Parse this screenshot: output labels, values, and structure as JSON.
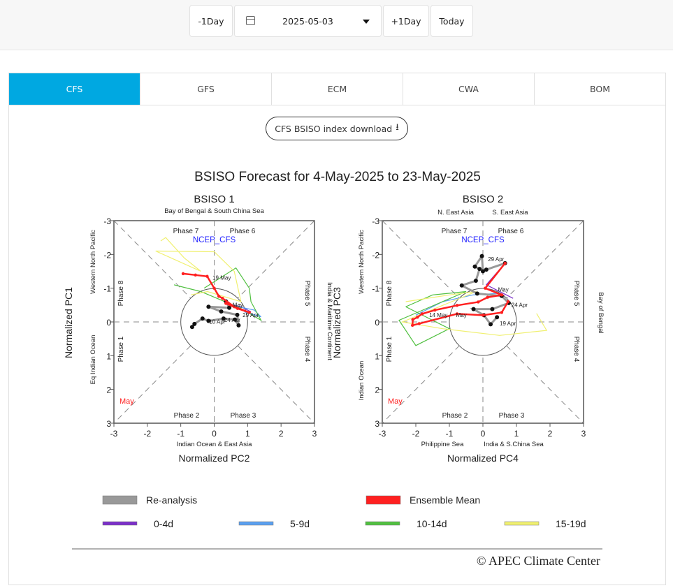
{
  "toolbar": {
    "prev_day": "-1Day",
    "date": "2025-05-03",
    "next_day": "+1Day",
    "today": "Today",
    "calendar_icon": "calendar-icon",
    "dropdown_icon": "caret-down-icon"
  },
  "tabs": [
    {
      "label": "CFS",
      "active": true
    },
    {
      "label": "GFS"
    },
    {
      "label": "ECM"
    },
    {
      "label": "CWA"
    },
    {
      "label": "BOM"
    }
  ],
  "accent_color": "#00a8e1",
  "download": {
    "label": "CFS BSISO index download",
    "icon": "download-icon"
  },
  "figure": {
    "title": "BSISO Forecast for 4-May-2025 to 23-May-2025",
    "model_label": "NCEP_CFS",
    "month_label": "May",
    "copyright": "© APEC Climate Center",
    "legend": [
      {
        "label": "Re-analysis",
        "color": "#999999"
      },
      {
        "label": "Ensemble Mean",
        "color": "#ff2020"
      },
      {
        "label": "0-4d",
        "color": "#7b2fc9"
      },
      {
        "label": "5-9d",
        "color": "#5aa0f0"
      },
      {
        "label": "10-14d",
        "color": "#50c040"
      },
      {
        "label": "15-19d",
        "color": "#f0f070"
      }
    ]
  },
  "chart_data": [
    {
      "type": "scatter",
      "title": "BSISO 1",
      "xlabel": "Normalized PC2",
      "ylabel": "Normalized PC1",
      "xlim": [
        -3,
        3
      ],
      "ylim": [
        -3,
        3
      ],
      "ticks": [
        "-3",
        "-2",
        "-1",
        "0",
        "1",
        "2",
        "3"
      ],
      "region_top": "Bay of Bengal & South China Sea",
      "region_bottom": "Indian Ocean & East Asia",
      "region_left_top": "Western North Pacific",
      "region_left_bottom": "Eq Indian Ocean",
      "region_right": "India & Maritime Continent",
      "phases": [
        "Phase 1",
        "Phase 2",
        "Phase 3",
        "Phase 4",
        "Phase 5",
        "Phase 6",
        "Phase 7",
        "Phase 8"
      ],
      "reanalysis": [
        [
          -0.66,
          0.15
        ],
        [
          -0.59,
          0.06
        ],
        [
          -0.35,
          -0.1
        ],
        [
          -0.17,
          -0.03
        ],
        [
          0.28,
          -0.1
        ],
        [
          0.62,
          -0.07
        ],
        [
          0.73,
          0.1
        ],
        [
          0.69,
          -0.21
        ],
        [
          0.21,
          -0.31
        ],
        [
          -0.17,
          -0.45
        ],
        [
          0.45,
          -0.42
        ],
        [
          0.35,
          -0.61
        ]
      ],
      "ensemble_mean": [
        [
          0.35,
          -0.55
        ],
        [
          0.7,
          -0.4
        ],
        [
          1.05,
          -0.28
        ],
        [
          0.6,
          -0.45
        ],
        [
          0.25,
          -0.7
        ],
        [
          0.14,
          -0.76
        ],
        [
          0,
          -1.0
        ],
        [
          -0.21,
          -1.35
        ],
        [
          -0.56,
          -1.39
        ],
        [
          -0.93,
          -1.43
        ]
      ],
      "members": {
        "0-4d": [
          [
            0.35,
            -0.55
          ],
          [
            0.8,
            -0.45
          ],
          [
            1.1,
            -0.3
          ]
        ],
        "5-9d": [
          [
            0.5,
            -0.5
          ],
          [
            1.2,
            -0.35
          ],
          [
            1.4,
            -0.15
          ],
          [
            0.9,
            -0.3
          ]
        ],
        "10-14d": [
          [
            -1.2,
            -1.1
          ],
          [
            -0.4,
            -0.9
          ],
          [
            0.8,
            -0.4
          ],
          [
            1.4,
            -0.05
          ],
          [
            1.1,
            -0.6
          ],
          [
            1.05,
            -1.0
          ],
          [
            0.65,
            -1.6
          ],
          [
            -0.3,
            -1.0
          ]
        ],
        "15-19d": [
          [
            -1.6,
            -2.4
          ],
          [
            -1.45,
            -2.5
          ],
          [
            -0.9,
            -1.9
          ],
          [
            -0.4,
            -1.5
          ],
          [
            -1.75,
            -2.1
          ],
          [
            0,
            -2.08
          ],
          [
            0.6,
            -1.5
          ],
          [
            0.8,
            -0.6
          ],
          [
            -0.2,
            -0.9
          ],
          [
            -0.7,
            -0.8
          ]
        ]
      },
      "point_labels": [
        {
          "text": "19 May",
          "at": [
            -0.05,
            -1.25
          ]
        },
        {
          "text": "10 Apr",
          "at": [
            -0.15,
            0.05
          ]
        },
        {
          "text": "24 Apr",
          "at": [
            0.3,
            0.0
          ]
        },
        {
          "text": "29 Apr",
          "at": [
            0.85,
            -0.15
          ]
        },
        {
          "text": "May",
          "at": [
            0.55,
            -0.45
          ]
        }
      ]
    },
    {
      "type": "scatter",
      "title": "BSISO 2",
      "xlabel": "Normalized PC4",
      "ylabel": "Normalized PC3",
      "xlim": [
        -3,
        3
      ],
      "ylim": [
        -3,
        3
      ],
      "ticks": [
        "-3",
        "-2",
        "-1",
        "0",
        "1",
        "2",
        "3"
      ],
      "region_top_left": "N. East Asia",
      "region_top_right": "S. East Asia",
      "region_bottom_left": "Philippine Sea",
      "region_bottom_right": "India & S.China Sea",
      "region_left_top": "Western North Pacific",
      "region_left_bottom": "Indian Ocean",
      "region_right": "Bay of Bengal",
      "phases": [
        "Phase 1",
        "Phase 2",
        "Phase 3",
        "Phase 4",
        "Phase 5",
        "Phase 6",
        "Phase 7",
        "Phase 8"
      ],
      "reanalysis": [
        [
          0.42,
          -0.14
        ],
        [
          0.23,
          0.07
        ],
        [
          0.03,
          -0.2
        ],
        [
          -0.28,
          -0.38
        ],
        [
          0.28,
          -0.38
        ],
        [
          0.77,
          -0.56
        ],
        [
          0.56,
          -0.77
        ],
        [
          -0.17,
          -0.84
        ],
        [
          -0.63,
          -1.08
        ],
        [
          -0.21,
          -1.22
        ],
        [
          -0.1,
          -1.57
        ],
        [
          -0.24,
          -1.64
        ],
        [
          -0.03,
          -1.95
        ],
        [
          0,
          -1.5
        ],
        [
          0.1,
          -1.55
        ],
        [
          0.66,
          -1.74
        ]
      ],
      "ensemble_mean": [
        [
          0.66,
          -1.74
        ],
        [
          0.07,
          -1.0
        ],
        [
          0.56,
          -0.8
        ],
        [
          0.14,
          -0.73
        ],
        [
          -0.14,
          -0.59
        ],
        [
          -0.77,
          -0.49
        ],
        [
          -1.43,
          -0.35
        ],
        [
          -1.81,
          -0.24
        ],
        [
          -1.95,
          -0.14
        ],
        [
          -2.09,
          -0.07
        ],
        [
          -2.1,
          0.1
        ],
        [
          -1.9,
          0.05
        ],
        [
          -0.77,
          -0.24
        ],
        [
          0,
          -0.2
        ],
        [
          0.56,
          -0.28
        ],
        [
          0.75,
          -0.6
        ]
      ],
      "members": {
        "0-4d": [
          [
            0.66,
            -1.74
          ],
          [
            0.1,
            -1.1
          ],
          [
            0.9,
            -0.7
          ]
        ],
        "5-9d": [
          [
            -2.0,
            -0.2
          ],
          [
            -1.2,
            -0.6
          ],
          [
            -0.3,
            -0.8
          ],
          [
            0.5,
            -0.85
          ]
        ],
        "10-14d": [
          [
            -2.3,
            -0.45
          ],
          [
            -1.5,
            -0.8
          ],
          [
            -0.5,
            -0.9
          ],
          [
            -2.5,
            -0.05
          ],
          [
            -2.0,
            0.7
          ],
          [
            -1.0,
            0.2
          ],
          [
            -2.3,
            -0.45
          ]
        ],
        "15-19d": [
          [
            -2.3,
            -0.6
          ],
          [
            -1.0,
            -0.8
          ],
          [
            -0.2,
            -0.9
          ],
          [
            -2.4,
            0.0
          ],
          [
            -1.2,
            0.2
          ],
          [
            0.5,
            0.4
          ],
          [
            1.9,
            0.25
          ],
          [
            1.6,
            -0.25
          ]
        ]
      },
      "point_labels": [
        {
          "text": "29 Apr",
          "at": [
            0.15,
            -1.8
          ]
        },
        {
          "text": "24 Apr",
          "at": [
            0.85,
            -0.45
          ]
        },
        {
          "text": "19 Apr",
          "at": [
            0.5,
            0.1
          ]
        },
        {
          "text": "14 May",
          "at": [
            -1.6,
            -0.15
          ]
        },
        {
          "text": "May",
          "at": [
            -0.8,
            -0.15
          ]
        },
        {
          "text": "May",
          "at": [
            0.45,
            -0.9
          ]
        }
      ]
    }
  ]
}
